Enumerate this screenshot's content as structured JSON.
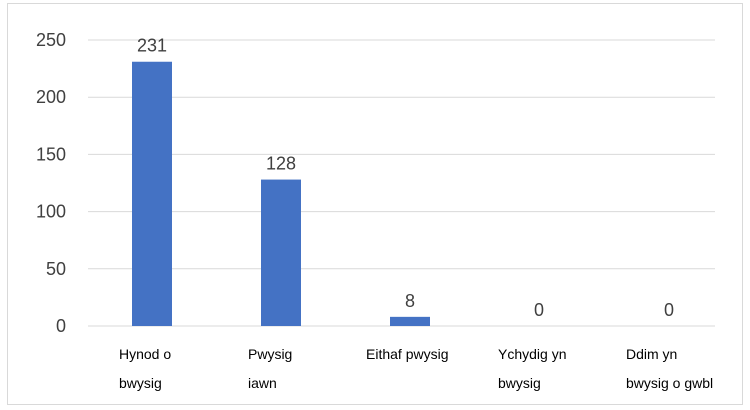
{
  "chart_data": {
    "type": "bar",
    "categories": [
      [
        "Hynod o",
        "bwysig"
      ],
      [
        "Pwysig",
        "iawn"
      ],
      [
        "Eithaf pwysig"
      ],
      [
        "Ychydig yn",
        "bwysig"
      ],
      [
        "Ddim yn",
        "bwysig o gwbl"
      ]
    ],
    "values": [
      231,
      128,
      8,
      0,
      0
    ],
    "data_labels": [
      "231",
      "128",
      "8",
      "0",
      "0"
    ],
    "title": "",
    "xlabel": "",
    "ylabel": "",
    "ylim": [
      0,
      250
    ],
    "yticks": [
      "0",
      "50",
      "100",
      "150",
      "200",
      "250"
    ],
    "grid": true,
    "legend": "none",
    "colors": {
      "bar": "#4472C4",
      "grid": "#d9d9d9",
      "axis_text": "#404040",
      "category_text": "#000000"
    }
  }
}
